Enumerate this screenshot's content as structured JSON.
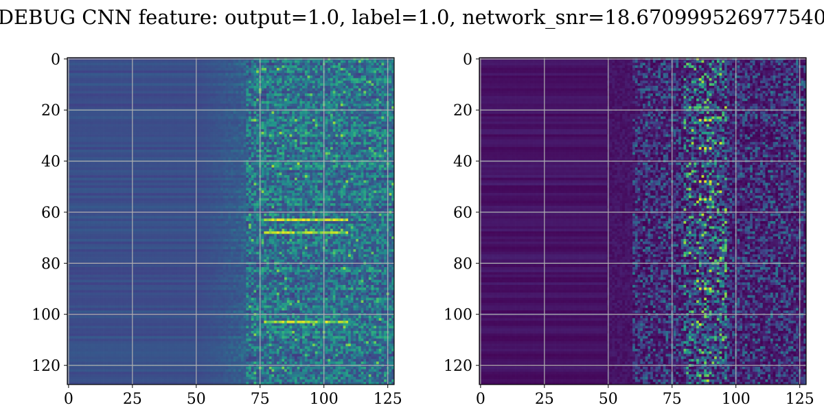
{
  "title": "DEBUG CNN feature: output=1.0, label=1.0, network_snr=18.670999526977540",
  "chart_data": [
    {
      "type": "heatmap",
      "name": "",
      "colormap": "viridis",
      "grid": true,
      "grid_color": "#b0b0b0",
      "shape": [
        128,
        128
      ],
      "xlim": [
        -0.5,
        127.5
      ],
      "ylim": [
        127.5,
        -0.5
      ],
      "xticks": [
        0,
        25,
        50,
        75,
        100,
        125
      ],
      "yticks": [
        0,
        20,
        40,
        60,
        80,
        100,
        120
      ],
      "xtick_labels": [
        "0",
        "25",
        "50",
        "75",
        "100",
        "125"
      ],
      "ytick_labels": [
        "0",
        "20",
        "40",
        "60",
        "80",
        "100",
        "120"
      ],
      "value_range": [
        0,
        1
      ],
      "profile": "left",
      "hot_rows": [
        63,
        68,
        103
      ],
      "hot_cols": [
        84,
        86,
        88
      ]
    },
    {
      "type": "heatmap",
      "name": "",
      "colormap": "viridis",
      "grid": true,
      "grid_color": "#b0b0b0",
      "shape": [
        128,
        128
      ],
      "xlim": [
        -0.5,
        127.5
      ],
      "ylim": [
        127.5,
        -0.5
      ],
      "xticks": [
        0,
        25,
        50,
        75,
        100,
        125
      ],
      "yticks": [
        0,
        20,
        40,
        60,
        80,
        100,
        120
      ],
      "xtick_labels": [
        "0",
        "25",
        "50",
        "75",
        "100",
        "125"
      ],
      "ytick_labels": [
        "0",
        "20",
        "40",
        "60",
        "80",
        "100",
        "120"
      ],
      "value_range": [
        0,
        1
      ],
      "profile": "right",
      "hot_rows": [
        24,
        35,
        48,
        55,
        90
      ],
      "hot_cols": [
        86,
        88,
        90
      ]
    }
  ]
}
